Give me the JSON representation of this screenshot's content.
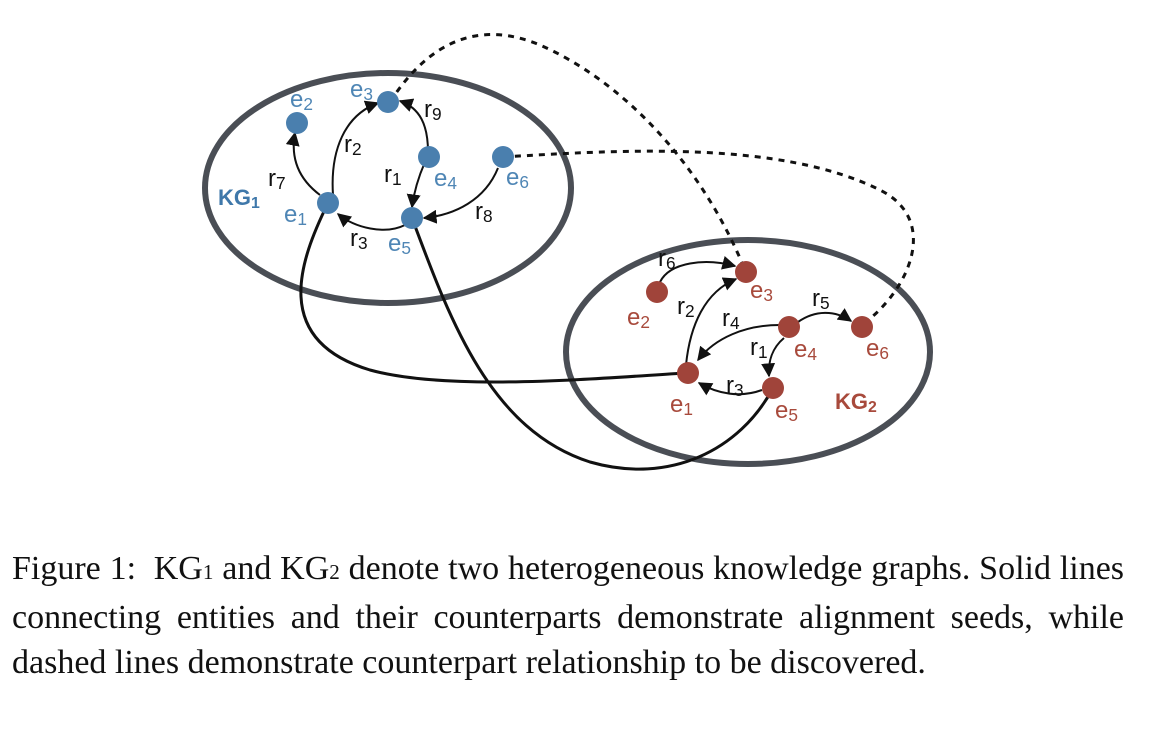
{
  "colors": {
    "kg1_node": "#4a7fae",
    "kg2_node": "#a0443a",
    "ellipse": "#4a4e55",
    "edge": "#111111"
  },
  "kg1": {
    "name_main": "KG",
    "name_sub": "1",
    "entities": [
      {
        "id": "e1",
        "main": "e",
        "sub": "1"
      },
      {
        "id": "e2",
        "main": "e",
        "sub": "2"
      },
      {
        "id": "e3",
        "main": "e",
        "sub": "3"
      },
      {
        "id": "e4",
        "main": "e",
        "sub": "4"
      },
      {
        "id": "e5",
        "main": "e",
        "sub": "5"
      },
      {
        "id": "e6",
        "main": "e",
        "sub": "6"
      }
    ],
    "relations": [
      {
        "id": "r7",
        "main": "r",
        "sub": "7"
      },
      {
        "id": "r2",
        "main": "r",
        "sub": "2"
      },
      {
        "id": "r9",
        "main": "r",
        "sub": "9"
      },
      {
        "id": "r1",
        "main": "r",
        "sub": "1"
      },
      {
        "id": "r3",
        "main": "r",
        "sub": "3"
      },
      {
        "id": "r8",
        "main": "r",
        "sub": "8"
      }
    ]
  },
  "kg2": {
    "name_main": "KG",
    "name_sub": "2",
    "entities": [
      {
        "id": "e1",
        "main": "e",
        "sub": "1"
      },
      {
        "id": "e2",
        "main": "e",
        "sub": "2"
      },
      {
        "id": "e3",
        "main": "e",
        "sub": "3"
      },
      {
        "id": "e4",
        "main": "e",
        "sub": "4"
      },
      {
        "id": "e5",
        "main": "e",
        "sub": "5"
      },
      {
        "id": "e6",
        "main": "e",
        "sub": "6"
      }
    ],
    "relations": [
      {
        "id": "r6",
        "main": "r",
        "sub": "6"
      },
      {
        "id": "r2",
        "main": "r",
        "sub": "2"
      },
      {
        "id": "r4",
        "main": "r",
        "sub": "4"
      },
      {
        "id": "r5",
        "main": "r",
        "sub": "5"
      },
      {
        "id": "r1",
        "main": "r",
        "sub": "1"
      },
      {
        "id": "r3",
        "main": "r",
        "sub": "3"
      }
    ]
  },
  "caption": {
    "label": "Figure 1:",
    "kg_main": "KG",
    "kg1_sub": "1",
    "and": "and",
    "kg2_sub": "2",
    "text": "denote two heterogeneous knowledge graphs. Solid lines connecting entities and their counterparts demonstrate alignment seeds, while dashed lines demonstrate counterpart relationship to be discovered."
  }
}
